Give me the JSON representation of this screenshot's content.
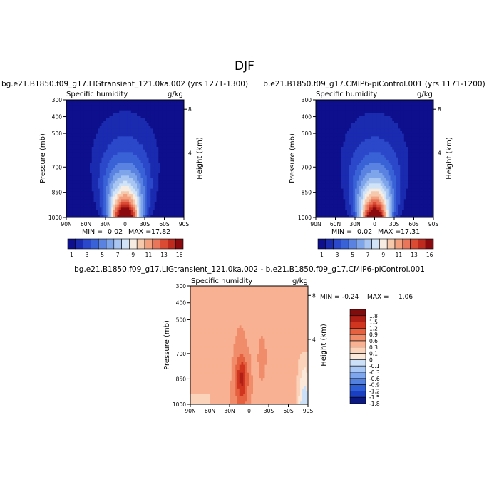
{
  "page_title": "DJF",
  "colors": {
    "main_scale": [
      "#0d0f8c",
      "#1a2bb0",
      "#2a48c9",
      "#3a62d7",
      "#5a82e0",
      "#7ea4ea",
      "#a9c6f2",
      "#d0e3f7",
      "#f6ece2",
      "#f6c8ac",
      "#f2a07e",
      "#e9765a",
      "#db4a33",
      "#bf2a1f",
      "#8b0a10"
    ],
    "diff_scale": [
      "#0b1980",
      "#1a3fc0",
      "#2f5fd4",
      "#5281e0",
      "#7ea6ec",
      "#a9c7f4",
      "#cce0f7",
      "#fde9d9",
      "#fbd3bb",
      "#f8b293",
      "#f08c6a",
      "#e5613f",
      "#d0351f",
      "#b01f15",
      "#7f0d0d"
    ]
  },
  "chart_data": [
    {
      "type": "heatmap",
      "name": "left",
      "title": "bg.e21.B1850.f09_g17.LIGtransient_121.0ka.002 (yrs 1271-1300)",
      "subtitle_left": "Specific humidity",
      "subtitle_right": "g/kg",
      "ylabel": "Pressure (mb)",
      "y2label": "Height (km)",
      "x_ticks": [
        "90N",
        "60N",
        "30N",
        "0",
        "30S",
        "60S",
        "90S"
      ],
      "x_values": [
        90,
        60,
        30,
        0,
        -30,
        -60,
        -90
      ],
      "y_ticks": [
        300,
        400,
        500,
        700,
        850,
        1000
      ],
      "y2_ticks": [
        "8",
        "4"
      ],
      "y2_values_mb": [
        356,
        616
      ],
      "xlim": [
        90,
        -90
      ],
      "ylim": [
        1000,
        300
      ],
      "levels": [
        1,
        2,
        3,
        4,
        5,
        6,
        7,
        8,
        9,
        10,
        11,
        12,
        13,
        14,
        16
      ],
      "peak_lat": 0,
      "peak_value": 17.82,
      "min_label": "MIN =",
      "min_value": "0.02",
      "max_label": "MAX =",
      "max_value": "17.82"
    },
    {
      "type": "heatmap",
      "name": "right",
      "title": "b.e21.B1850.f09_g17.CMIP6-piControl.001 (yrs 1171-1200)",
      "subtitle_left": "Specific humidity",
      "subtitle_right": "g/kg",
      "ylabel": "Pressure (mb)",
      "y2label": "Height (km)",
      "x_ticks": [
        "90N",
        "60N",
        "30N",
        "0",
        "30S",
        "60S",
        "90S"
      ],
      "x_values": [
        90,
        60,
        30,
        0,
        -30,
        -60,
        -90
      ],
      "y_ticks": [
        300,
        400,
        500,
        700,
        850,
        1000
      ],
      "y2_ticks": [
        "8",
        "4"
      ],
      "y2_values_mb": [
        356,
        616
      ],
      "xlim": [
        90,
        -90
      ],
      "ylim": [
        1000,
        300
      ],
      "levels": [
        1,
        2,
        3,
        4,
        5,
        6,
        7,
        8,
        9,
        10,
        11,
        12,
        13,
        14,
        16
      ],
      "peak_lat": 0,
      "peak_value": 17.31,
      "min_label": "MIN =",
      "min_value": "0.02",
      "max_label": "MAX =",
      "max_value": "17.31"
    },
    {
      "type": "heatmap",
      "name": "diff",
      "title": "bg.e21.B1850.f09_g17.LIGtransient_121.0ka.002 - b.e21.B1850.f09_g17.CMIP6-piControl.001",
      "subtitle_left": "Specific humidity",
      "subtitle_right": "g/kg",
      "ylabel": "Pressure (mb)",
      "y2label": "Height (km)",
      "x_ticks": [
        "90N",
        "60N",
        "30N",
        "0",
        "30S",
        "60S",
        "90S"
      ],
      "x_values": [
        90,
        60,
        30,
        0,
        -30,
        -60,
        -90
      ],
      "y_ticks": [
        300,
        400,
        500,
        700,
        850,
        1000
      ],
      "y2_ticks": [
        "8",
        "4"
      ],
      "y2_values_mb": [
        356,
        616
      ],
      "xlim": [
        90,
        -90
      ],
      "ylim": [
        1000,
        300
      ],
      "levels": [
        -1.8,
        -1.5,
        -1.2,
        -0.9,
        -0.6,
        -0.3,
        -0.1,
        0,
        0.1,
        0.3,
        0.6,
        0.9,
        1.2,
        1.5,
        1.8
      ],
      "min_label": "MIN =",
      "min_value": "-0.24",
      "max_label": "MAX =",
      "max_value": "1.06"
    }
  ],
  "colorbar_main": {
    "labels": [
      "1",
      "3",
      "5",
      "7",
      "9",
      "11",
      "13",
      "16"
    ]
  },
  "colorbar_diff": {
    "labels": [
      "1.8",
      "1.5",
      "1.2",
      "0.9",
      "0.6",
      "0.3",
      "0.1",
      "0",
      "-0.1",
      "-0.3",
      "-0.6",
      "-0.9",
      "-1.2",
      "-1.5",
      "-1.8"
    ]
  }
}
